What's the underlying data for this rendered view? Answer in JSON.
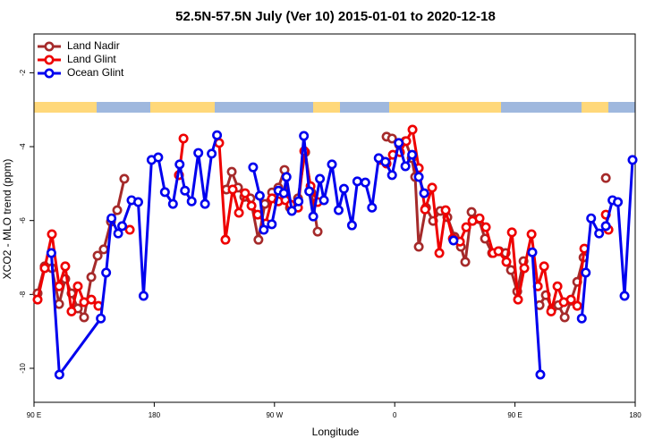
{
  "chart_data": {
    "type": "line",
    "title": "52.5N-57.5N July (Ver 10)   2015-01-01 to 2020-12-18",
    "x_label": "Longitude",
    "y_label": "XCO2 - MLO trend (ppm)",
    "xlim": [
      90,
      540
    ],
    "ylim": [
      -10.92,
      -0.95
    ],
    "xticks": [
      {
        "value": 90,
        "label": "90 E"
      },
      {
        "value": 180,
        "label": "180"
      },
      {
        "value": 270,
        "label": "90 W"
      },
      {
        "value": 360,
        "label": "0"
      },
      {
        "value": 450,
        "label": "90 E"
      },
      {
        "value": 540,
        "label": "180"
      }
    ],
    "yticks": [
      -10,
      -8,
      -6,
      -4,
      -2
    ],
    "legend": "top-left",
    "series": [
      {
        "name": "Land Nadir",
        "color": "#a52a2a",
        "x": [
          92.7,
          98,
          103.4,
          108.8,
          113.4,
          118.1,
          122.8,
          127.5,
          132.9,
          137.6,
          142.2,
          147.6,
          152.3,
          157.6,
          null,
          198.5,
          null,
          234,
          238,
          242.7,
          247.4,
          252,
          258,
          262.8,
          268.2,
          272.9,
          277.5,
          281.6,
          287.6,
          293,
          297.6,
          302.3,
          null,
          353.9,
          358,
          363.3,
          368,
          372.7,
          375.3,
          378,
          383.4,
          388.7,
          394.1,
          399.4,
          404.8,
          409.5,
          412.8,
          417.5,
          422.9,
          427.6,
          432.9,
          438.3,
          443,
          447,
          451.7,
          456.4,
          null,
          468.4,
          473.1,
          477.8,
          482.5,
          487.2,
          491.9,
          496.6,
          501.3,
          null,
          518
        ],
        "values": [
          -7.97,
          -7.24,
          -7.29,
          -8.26,
          -7.58,
          -7.97,
          -8.38,
          -8.62,
          -7.53,
          -6.95,
          -6.78,
          -6.03,
          -5.72,
          -4.87,
          null,
          -4.77,
          null,
          -5.16,
          -4.68,
          -5.11,
          -5.36,
          -5.4,
          -6.52,
          -5.55,
          -5.24,
          -5.11,
          -4.63,
          -5.65,
          -5.4,
          -4.15,
          -5.24,
          -6.3,
          null,
          -3.73,
          -3.78,
          -3.95,
          -3.85,
          -4.31,
          -4.82,
          -6.71,
          -5.65,
          -6.01,
          -5.74,
          -5.91,
          -6.44,
          -6.71,
          -7.12,
          -5.77,
          -5.96,
          -6.49,
          -6.88,
          -6.83,
          -6.88,
          -7.34,
          -7.92,
          -7.1,
          null,
          -8.29,
          -8.02,
          -8.38,
          -8.29,
          -8.62,
          -8.17,
          -7.66,
          -7.0,
          null,
          -4.85
        ]
      },
      {
        "name": "Land Glint",
        "color": "#ee0000",
        "x": [
          92.7,
          98,
          103.4,
          108.8,
          113.4,
          118.1,
          122.8,
          127.5,
          132.9,
          138.2,
          null,
          161.7,
          null,
          198.5,
          201.9,
          null,
          228.6,
          233.3,
          238.7,
          243.4,
          248,
          252.8,
          257.4,
          263.5,
          268.2,
          272.9,
          278.2,
          282.2,
          287.6,
          292.3,
          297,
          302.3,
          null,
          349.2,
          353.9,
          358.6,
          363.9,
          368.6,
          373.3,
          378,
          382.7,
          388,
          393.4,
          398.1,
          403.5,
          408.8,
          413.5,
          418.2,
          423.5,
          428.2,
          433.6,
          437.6,
          443.6,
          447.7,
          452.3,
          457,
          462.4,
          467.1,
          471.8,
          477.1,
          481.8,
          486.5,
          491.9,
          496.6,
          501.9,
          null,
          518,
          520
        ],
        "values": [
          -8.14,
          -7.29,
          -6.37,
          -7.78,
          -7.24,
          -8.46,
          -7.78,
          -8.21,
          -8.14,
          -8.31,
          null,
          -6.25,
          null,
          -4.77,
          -3.78,
          null,
          -3.9,
          -6.52,
          -5.16,
          -5.79,
          -5.26,
          -5.6,
          -5.84,
          -6.08,
          -5.4,
          -5.48,
          -5.45,
          -5.57,
          -5.65,
          -4.12,
          -5.07,
          -5.5,
          null,
          -4.36,
          -4.46,
          -4.22,
          -4.15,
          -3.85,
          -3.54,
          -4.58,
          -5.7,
          -5.11,
          -6.88,
          -5.72,
          -6.49,
          -6.57,
          -6.18,
          -6.01,
          -5.94,
          -6.18,
          -6.88,
          -6.83,
          -7.12,
          -6.32,
          -8.14,
          -7.29,
          -6.37,
          -7.78,
          -7.24,
          -8.46,
          -7.78,
          -8.21,
          -8.14,
          -8.31,
          -6.76,
          null,
          -5.84,
          -6.25
        ]
      },
      {
        "name": "Ocean Glint",
        "color": "#0000ee",
        "x": [
          103,
          109,
          140,
          144,
          148,
          153,
          156,
          163,
          168,
          172,
          178,
          183,
          188,
          194,
          199,
          203,
          208,
          213,
          218,
          223,
          227,
          null,
          254,
          259,
          262,
          268,
          273,
          277,
          279,
          283,
          288,
          292,
          296,
          299,
          304,
          307,
          313,
          318,
          322,
          328,
          332,
          338,
          343,
          348,
          353,
          358,
          363,
          368,
          373,
          378,
          382,
          null,
          404,
          null,
          463,
          469,
          null,
          500,
          503,
          507,
          513,
          518,
          523,
          527,
          532,
          538
        ],
        "values": [
          -6.88,
          -10.17,
          -8.65,
          -7.41,
          -5.94,
          -6.35,
          -6.15,
          -5.45,
          -5.5,
          -8.04,
          -4.36,
          -4.29,
          -5.23,
          -5.55,
          -4.48,
          -5.19,
          -5.48,
          -4.17,
          -5.55,
          -4.19,
          -3.69,
          null,
          -4.56,
          -5.33,
          -6.25,
          -6.1,
          -5.19,
          -5.26,
          -4.82,
          -5.74,
          -5.48,
          -3.71,
          -5.21,
          -5.89,
          -4.87,
          -5.45,
          -4.48,
          -5.72,
          -5.14,
          -6.13,
          -4.94,
          -4.97,
          -5.65,
          -4.31,
          -4.41,
          -4.77,
          -3.9,
          -4.53,
          -4.22,
          -4.82,
          -5.26,
          null,
          -6.54,
          null,
          -6.86,
          -10.17,
          null,
          -8.65,
          -7.41,
          -5.94,
          -6.35,
          -6.15,
          -5.45,
          -5.5,
          -8.04,
          -4.36
        ]
      }
    ]
  }
}
